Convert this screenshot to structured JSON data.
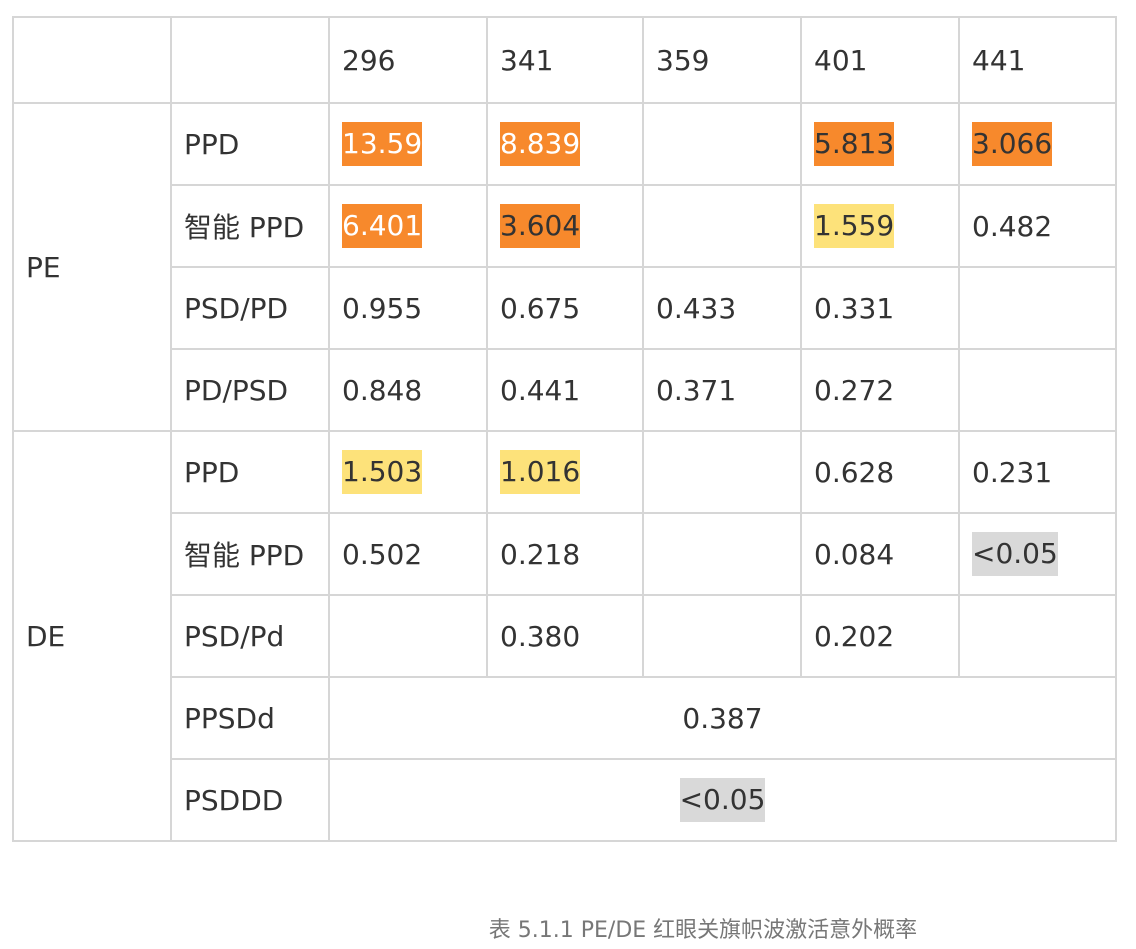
{
  "header": [
    "",
    "",
    "296",
    "341",
    "359",
    "401",
    "441"
  ],
  "groups": {
    "pe": "PE",
    "de": "DE"
  },
  "rows": {
    "pe_ppd": {
      "label": "PPD",
      "v296": "13.59",
      "v341": "8.839",
      "v359": "",
      "v401": "5.813",
      "v441": "3.066"
    },
    "pe_smart": {
      "label": "智能 PPD",
      "v296": "6.401",
      "v341": "3.604",
      "v359": "",
      "v401": "1.559",
      "v441": "0.482"
    },
    "pe_psdpd": {
      "label": "PSD/PD",
      "v296": "0.955",
      "v341": "0.675",
      "v359": "0.433",
      "v401": "0.331",
      "v441": ""
    },
    "pe_pdpsd": {
      "label": "PD/PSD",
      "v296": "0.848",
      "v341": "0.441",
      "v359": "0.371",
      "v401": "0.272",
      "v441": ""
    },
    "de_ppd": {
      "label": "PPD",
      "v296": "1.503",
      "v341": "1.016",
      "v359": "",
      "v401": "0.628",
      "v441": "0.231"
    },
    "de_smart": {
      "label": "智能 PPD",
      "v296": "0.502",
      "v341": "0.218",
      "v359": "",
      "v401": "0.084",
      "v441": "<0.05"
    },
    "de_psdpd": {
      "label": "PSD/Pd",
      "v296": "",
      "v341": "0.380",
      "v359": "",
      "v401": "0.202",
      "v441": ""
    },
    "de_ppsdd": {
      "label": "PPSDd",
      "merged": "0.387"
    },
    "de_psddd": {
      "label": "PSDDD",
      "merged": "<0.05"
    }
  },
  "highlight_colors": {
    "orange": "#f7892c",
    "yellow": "#fde27a",
    "gray": "#d9d9d9"
  },
  "caption": "表 5.1.1  PE/DE 红眼关旗帜波激活意外概率"
}
